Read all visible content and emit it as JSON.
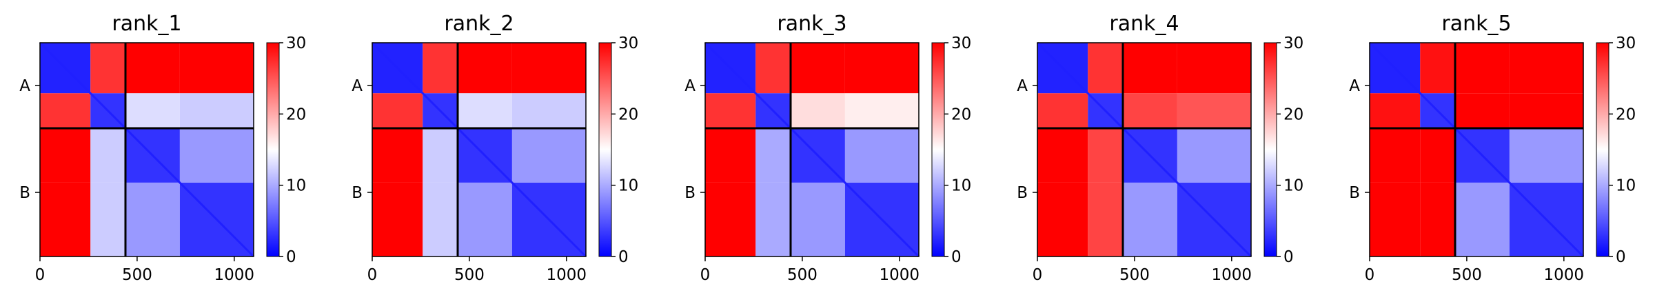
{
  "chart_data": {
    "type": "heatmap",
    "description_colorscale": "bwr",
    "colormap": {
      "low": "#0000ff",
      "mid": "#ffffff",
      "high": "#ff0000"
    },
    "colorbar": {
      "min": 0,
      "max": 30,
      "ticks": [
        "0",
        "10",
        "20",
        "30"
      ]
    },
    "x_ticks": [
      "0",
      "500",
      "1000"
    ],
    "x_tick_values": [
      0,
      500,
      1000
    ],
    "x_range": [
      0,
      1100
    ],
    "chains": [
      {
        "label": "A",
        "start": 0,
        "end": 440
      },
      {
        "label": "B",
        "start": 440,
        "end": 1100
      }
    ],
    "domains": [
      [
        0,
        260
      ],
      [
        260,
        440
      ],
      [
        440,
        720
      ],
      [
        720,
        1100
      ]
    ],
    "panels": [
      {
        "title": "rank_1",
        "block_pae": [
          [
            2,
            27,
            30,
            30
          ],
          [
            27,
            3,
            13,
            12
          ],
          [
            30,
            12,
            3,
            9
          ],
          [
            30,
            12,
            9,
            3
          ]
        ]
      },
      {
        "title": "rank_2",
        "block_pae": [
          [
            2,
            27,
            30,
            30
          ],
          [
            27,
            3,
            13,
            12
          ],
          [
            30,
            12,
            3,
            9
          ],
          [
            30,
            12,
            9,
            3
          ]
        ]
      },
      {
        "title": "rank_3",
        "block_pae": [
          [
            2,
            27,
            30,
            30
          ],
          [
            27,
            3,
            17,
            16
          ],
          [
            30,
            10,
            3,
            9
          ],
          [
            30,
            10,
            9,
            3
          ]
        ]
      },
      {
        "title": "rank_4",
        "block_pae": [
          [
            2,
            27,
            30,
            30
          ],
          [
            27,
            3,
            26,
            25
          ],
          [
            30,
            26,
            3,
            9
          ],
          [
            30,
            26,
            9,
            3
          ]
        ]
      },
      {
        "title": "rank_5",
        "block_pae": [
          [
            2,
            29,
            30,
            30
          ],
          [
            29,
            3,
            30,
            30
          ],
          [
            30,
            30,
            3,
            9
          ],
          [
            30,
            30,
            9,
            3
          ]
        ]
      }
    ]
  }
}
